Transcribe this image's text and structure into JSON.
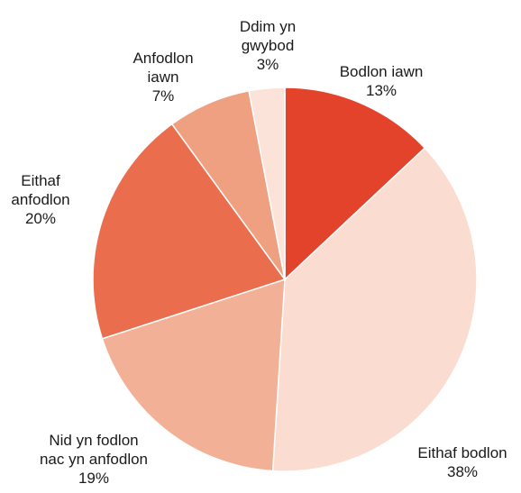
{
  "chart_data": {
    "type": "pie",
    "start_angle_deg": 0,
    "direction": "clockwise",
    "slices": [
      {
        "name": "Bodlon iawn",
        "label_lines": [
          "Bodlon iawn"
        ],
        "value": 13,
        "value_label": "13%",
        "color": "#e3432a"
      },
      {
        "name": "Eithaf bodlon",
        "label_lines": [
          "Eithaf bodlon"
        ],
        "value": 38,
        "value_label": "38%",
        "color": "#fadcd0"
      },
      {
        "name": "Nid yn fodlon nac yn anfodlon",
        "label_lines": [
          "Nid yn fodlon",
          "nac yn anfodlon"
        ],
        "value": 19,
        "value_label": "19%",
        "color": "#f2b096"
      },
      {
        "name": "Eithaf anfodlon",
        "label_lines": [
          "Eithaf",
          "anfodlon"
        ],
        "value": 20,
        "value_label": "20%",
        "color": "#ea6d4d"
      },
      {
        "name": "Anfodlon iawn",
        "label_lines": [
          "Anfodlon",
          "iawn"
        ],
        "value": 7,
        "value_label": "7%",
        "color": "#efa081"
      },
      {
        "name": "Ddim yn gwybod",
        "label_lines": [
          "Ddim yn",
          "gwybod"
        ],
        "value": 3,
        "value_label": "3%",
        "color": "#fbe3da"
      }
    ]
  }
}
